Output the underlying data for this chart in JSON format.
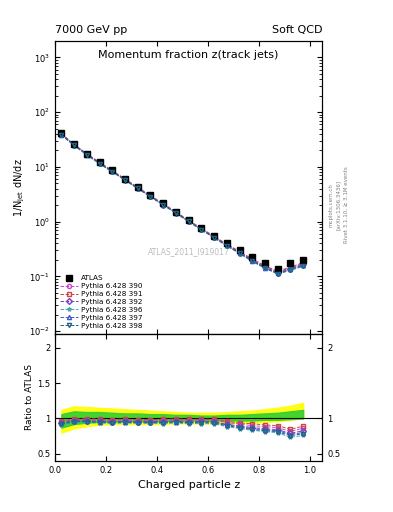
{
  "title_main": "Momentum fraction z(track jets)",
  "header_left": "7000 GeV pp",
  "header_right": "Soft QCD",
  "ylabel_main": "1/N$_\\mathregular{jet}$ dN/dz",
  "ylabel_ratio": "Ratio to ATLAS",
  "xlabel": "Charged particle z",
  "watermark": "ATLAS_2011_I919017",
  "right_label1": "mcplots.cern.ch",
  "right_label2": "[arXiv:1306.3436]",
  "right_label3": "Rivet 3.1.10, ≥ 3.1M events",
  "ylim_main": [
    0.009,
    2000
  ],
  "ylim_ratio": [
    0.4,
    2.2
  ],
  "xlim": [
    0.0,
    1.05
  ],
  "z_centers": [
    0.025,
    0.075,
    0.125,
    0.175,
    0.225,
    0.275,
    0.325,
    0.375,
    0.425,
    0.475,
    0.525,
    0.575,
    0.625,
    0.675,
    0.725,
    0.775,
    0.825,
    0.875,
    0.925,
    0.975
  ],
  "atlas_y": [
    42.0,
    26.0,
    17.5,
    12.2,
    8.7,
    6.1,
    4.3,
    3.05,
    2.15,
    1.52,
    1.07,
    0.76,
    0.545,
    0.405,
    0.305,
    0.225,
    0.172,
    0.138,
    0.175,
    0.2
  ],
  "atlas_yerr": [
    2.0,
    1.2,
    0.8,
    0.55,
    0.38,
    0.27,
    0.19,
    0.13,
    0.09,
    0.07,
    0.05,
    0.035,
    0.025,
    0.018,
    0.013,
    0.01,
    0.008,
    0.007,
    0.01,
    0.014
  ],
  "mc_labels": [
    "Pythia 6.428 390",
    "Pythia 6.428 391",
    "Pythia 6.428 392",
    "Pythia 6.428 396",
    "Pythia 6.428 397",
    "Pythia 6.428 398"
  ],
  "mc_colors": [
    "#cc44cc",
    "#cc4444",
    "#7744bb",
    "#44aaaa",
    "#4455cc",
    "#226688"
  ],
  "mc_markers": [
    "o",
    "s",
    "D",
    "*",
    "^",
    "v"
  ],
  "mc_390_y": [
    40.0,
    25.5,
    17.2,
    11.9,
    8.45,
    5.95,
    4.18,
    2.97,
    2.09,
    1.49,
    1.04,
    0.745,
    0.532,
    0.382,
    0.28,
    0.202,
    0.152,
    0.12,
    0.143,
    0.172
  ],
  "mc_391_y": [
    40.5,
    25.8,
    17.4,
    12.1,
    8.55,
    6.05,
    4.22,
    3.0,
    2.12,
    1.51,
    1.055,
    0.752,
    0.538,
    0.388,
    0.285,
    0.208,
    0.156,
    0.124,
    0.148,
    0.178
  ],
  "mc_392_y": [
    39.5,
    25.2,
    16.9,
    11.7,
    8.3,
    5.85,
    4.1,
    2.91,
    2.05,
    1.46,
    1.02,
    0.728,
    0.52,
    0.372,
    0.272,
    0.196,
    0.147,
    0.116,
    0.138,
    0.165
  ],
  "mc_396_y": [
    38.0,
    24.5,
    16.5,
    11.4,
    8.1,
    5.7,
    4.0,
    2.84,
    1.99,
    1.42,
    0.99,
    0.705,
    0.503,
    0.358,
    0.261,
    0.187,
    0.14,
    0.11,
    0.128,
    0.152
  ],
  "mc_397_y": [
    39.0,
    25.0,
    16.8,
    11.6,
    8.25,
    5.82,
    4.08,
    2.9,
    2.04,
    1.45,
    1.01,
    0.722,
    0.516,
    0.368,
    0.269,
    0.193,
    0.144,
    0.114,
    0.135,
    0.16
  ],
  "mc_398_y": [
    38.5,
    24.8,
    16.7,
    11.5,
    8.15,
    5.75,
    4.04,
    2.87,
    2.02,
    1.44,
    1.005,
    0.715,
    0.51,
    0.363,
    0.265,
    0.19,
    0.142,
    0.112,
    0.132,
    0.157
  ],
  "band_yellow_lo": [
    0.8,
    0.86,
    0.89,
    0.91,
    0.92,
    0.92,
    0.92,
    0.92,
    0.92,
    0.93,
    0.93,
    0.93,
    0.93,
    0.93,
    0.94,
    0.94,
    0.95,
    0.96,
    0.98,
    1.0
  ],
  "band_yellow_hi": [
    1.12,
    1.17,
    1.16,
    1.15,
    1.14,
    1.13,
    1.12,
    1.11,
    1.1,
    1.09,
    1.08,
    1.08,
    1.08,
    1.09,
    1.1,
    1.11,
    1.13,
    1.15,
    1.18,
    1.22
  ],
  "band_green_lo": [
    0.87,
    0.92,
    0.94,
    0.95,
    0.96,
    0.96,
    0.96,
    0.96,
    0.96,
    0.97,
    0.97,
    0.97,
    0.97,
    0.97,
    0.97,
    0.97,
    0.98,
    0.98,
    0.99,
    1.0
  ],
  "band_green_hi": [
    1.06,
    1.1,
    1.09,
    1.09,
    1.08,
    1.07,
    1.07,
    1.06,
    1.06,
    1.05,
    1.05,
    1.04,
    1.04,
    1.05,
    1.05,
    1.06,
    1.07,
    1.08,
    1.1,
    1.12
  ]
}
